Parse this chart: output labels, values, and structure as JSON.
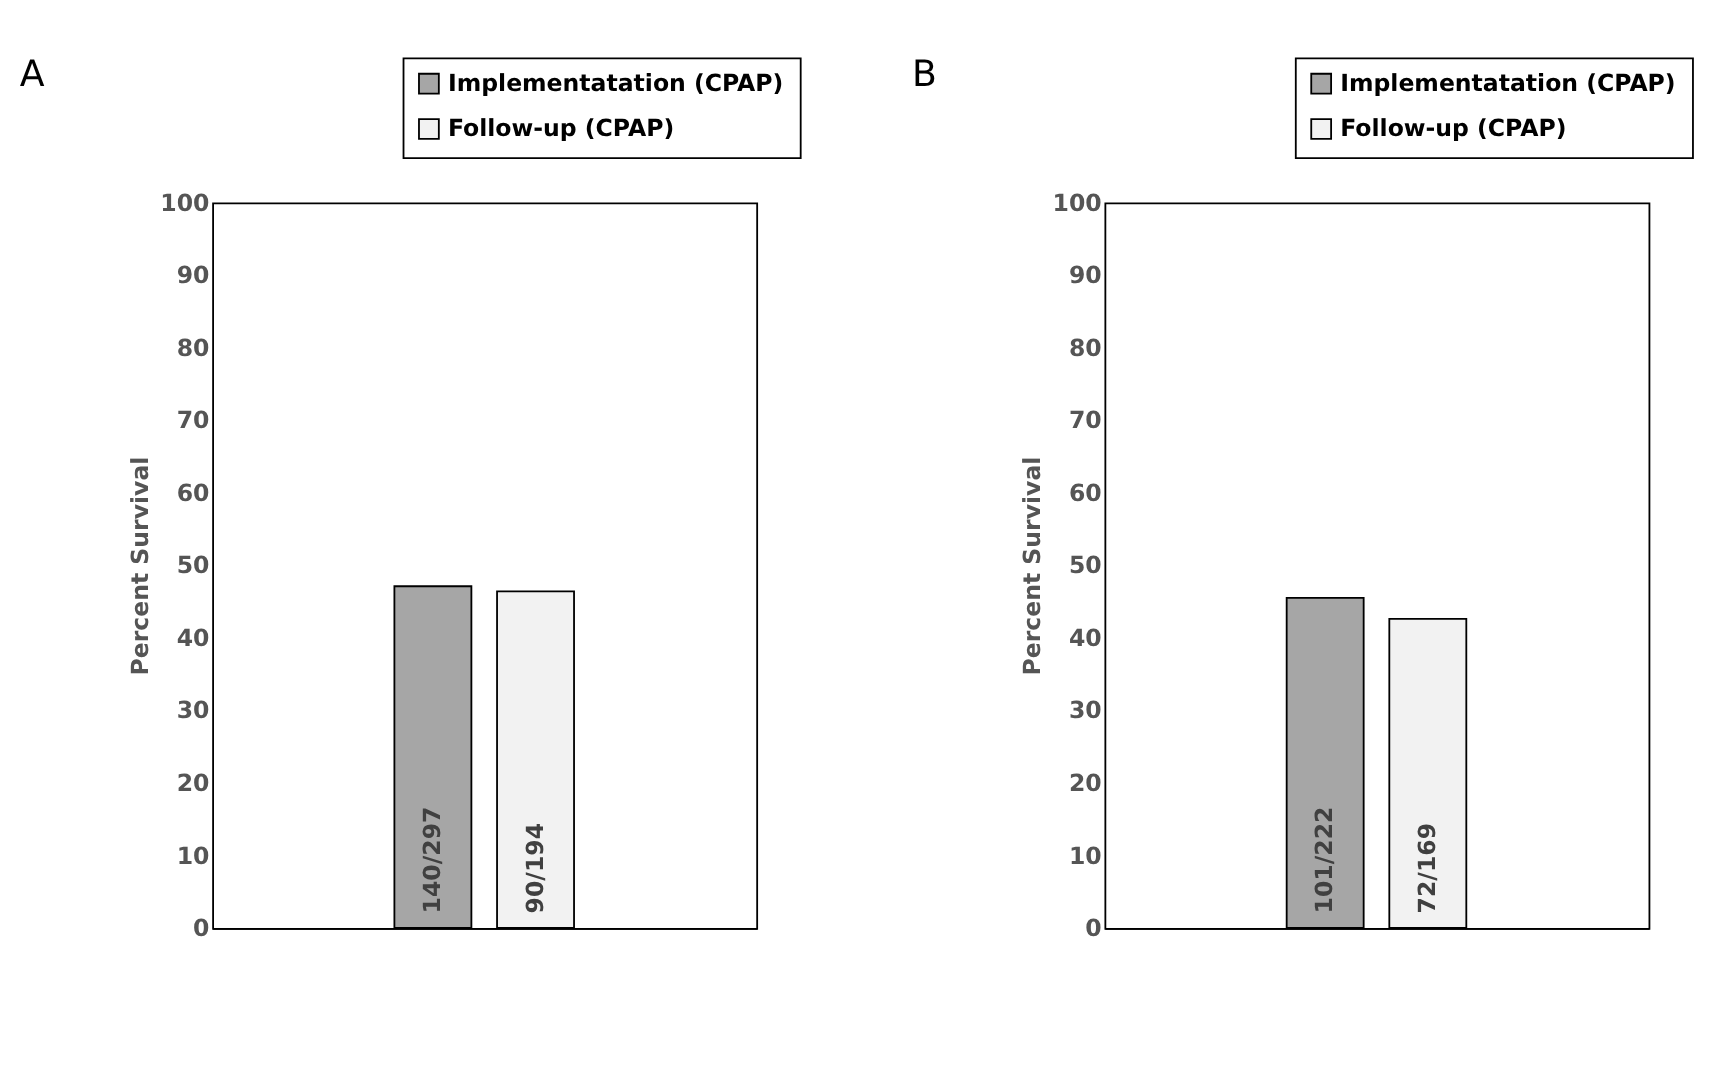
{
  "chart_data": [
    {
      "type": "bar",
      "title": "A",
      "ylabel": "Percent Survival",
      "categories": [
        null
      ],
      "series": [
        {
          "name": "Implementatation (CPAP)",
          "color": "#a6a6a6",
          "values": [
            47.1
          ],
          "value_labels": [
            "140/297"
          ]
        },
        {
          "name": "Follow-up (CPAP)",
          "color": "#f2f2f2",
          "values": [
            46.4
          ],
          "value_labels": [
            "90/194"
          ]
        }
      ],
      "ylim": [
        0,
        100
      ],
      "yticks": [
        0,
        10,
        20,
        30,
        40,
        50,
        60,
        70,
        80,
        90,
        100
      ],
      "legend": "top right"
    },
    {
      "type": "bar",
      "title": "B",
      "ylabel": "Percent Survival",
      "categories": [
        null
      ],
      "series": [
        {
          "name": "Implementatation (CPAP)",
          "color": "#a6a6a6",
          "values": [
            45.5
          ],
          "value_labels": [
            "101/222"
          ]
        },
        {
          "name": "Follow-up (CPAP)",
          "color": "#f2f2f2",
          "values": [
            42.6
          ],
          "value_labels": [
            "72/169"
          ]
        }
      ],
      "ylim": [
        0,
        100
      ],
      "yticks": [
        0,
        10,
        20,
        30,
        40,
        50,
        60,
        70,
        80,
        90,
        100
      ],
      "legend": "top right"
    }
  ]
}
